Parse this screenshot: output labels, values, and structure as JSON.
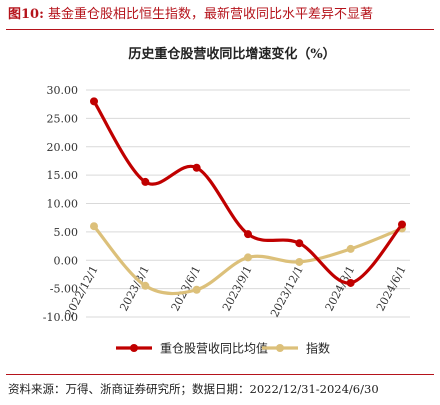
{
  "figure": {
    "number": "图10:",
    "caption": "基金重仓股相比恒生指数，最新营收同比水平差异不显著",
    "source": "资料来源：万得、浙商证券研究所；数据日期：2022/12/31-2024/6/30"
  },
  "colors": {
    "accent": "#b5131b",
    "series_holdings": "#c00000",
    "series_index": "#dcc07a",
    "grid": "#d9d9d9",
    "axis_text": "#333333"
  },
  "chart_data": {
    "type": "line",
    "title": "历史重仓股营收同比增速变化（%）",
    "x": [
      "2022/12/1",
      "2023/3/1",
      "2023/6/1",
      "2023/9/1",
      "2023/12/1",
      "2024/3/1",
      "2024/6/1"
    ],
    "series": [
      {
        "name": "重仓股营收同比均值",
        "values": [
          28.0,
          13.8,
          16.3,
          4.6,
          3.0,
          -4.0,
          6.3
        ],
        "color": "#c00000"
      },
      {
        "name": "指数",
        "values": [
          6.0,
          -4.5,
          -5.2,
          0.5,
          -0.3,
          2.0,
          5.6
        ],
        "color": "#dcc07a"
      }
    ],
    "yticks": [
      "30.00",
      "25.00",
      "20.00",
      "15.00",
      "10.00",
      "5.00",
      "0.00",
      "-5.00",
      "-10.00"
    ],
    "ylim": [
      -10,
      30
    ],
    "grid": "horizontal",
    "legend_position": "bottom",
    "smooth": true,
    "markers": true
  }
}
